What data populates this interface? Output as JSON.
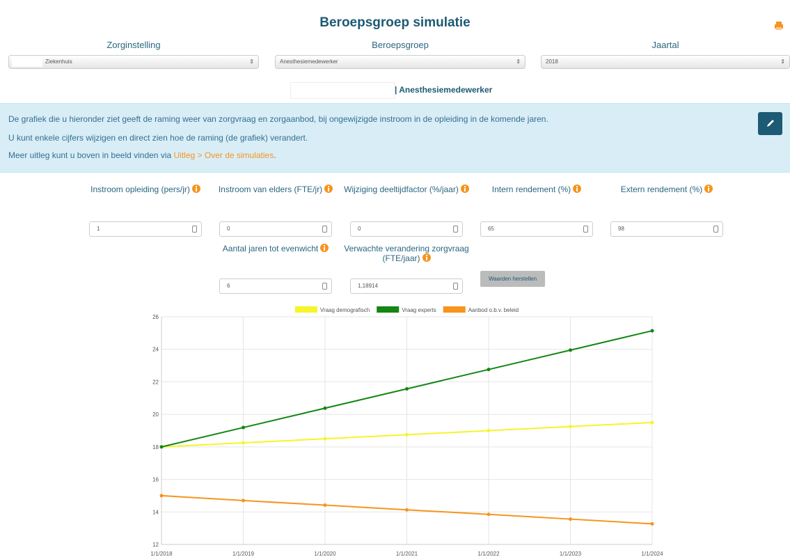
{
  "header": {
    "title": "Beroepsgroep simulatie"
  },
  "selectors": [
    {
      "label": "Zorginstelling",
      "value": "Ziekenhuis"
    },
    {
      "label": "Beroepsgroep",
      "value": "Anesthesiemedewerker"
    },
    {
      "label": "Jaartal",
      "value": "2018"
    }
  ],
  "subtitle": "| Anesthesiemedewerker",
  "info": {
    "lines": [
      "De grafiek die u hieronder ziet geeft de raming weer van zorgvraag en zorgaanbod, bij ongewijzigde instroom in de opleiding in de komende jaren.",
      "U kunt enkele cijfers wijzigen en direct zien hoe de raming (de grafiek) verandert.",
      "Meer uitleg kunt u boven in beeld vinden via "
    ],
    "link": "Uitleg > Over de simulaties",
    "tail": "."
  },
  "inputs": [
    {
      "label": "Instroom opleiding (pers/jr)",
      "value": "1"
    },
    {
      "label": "Instroom van elders (FTE/jr)",
      "value": "0"
    },
    {
      "label": "Wijziging deeltijdfactor (%/jaar)",
      "value": "0"
    },
    {
      "label": "Intern rendement (%)",
      "value": "65"
    },
    {
      "label": "Extern rendement (%)",
      "value": "98"
    },
    {
      "label": "Aantal jaren tot evenwicht",
      "value": "6"
    },
    {
      "label": "Verwachte verandering zorgvraag (FTE/jaar)",
      "value": "1,18914"
    }
  ],
  "button": "Waarden herstellen",
  "chart_data": {
    "type": "line",
    "categories": [
      "1/1/2018",
      "1/1/2019",
      "1/1/2020",
      "1/1/2021",
      "1/1/2022",
      "1/1/2023",
      "1/1/2024"
    ],
    "series": [
      {
        "name": "Vraag demografisch",
        "color": "#f5f52a",
        "values": [
          18,
          18.25,
          18.5,
          18.75,
          19.0,
          19.25,
          19.5
        ]
      },
      {
        "name": "Vraag experts",
        "color": "#138613",
        "values": [
          18,
          19.19,
          20.38,
          21.57,
          22.76,
          23.95,
          25.14
        ]
      },
      {
        "name": "Aanbod o.b.v. beleid",
        "color": "#f7941d",
        "values": [
          15,
          14.7,
          14.42,
          14.13,
          13.85,
          13.56,
          13.27
        ]
      }
    ],
    "ylim": [
      12,
      26
    ],
    "yticks": [
      12,
      14,
      16,
      18,
      20,
      22,
      24,
      26
    ],
    "grid": true,
    "legend": "top"
  }
}
